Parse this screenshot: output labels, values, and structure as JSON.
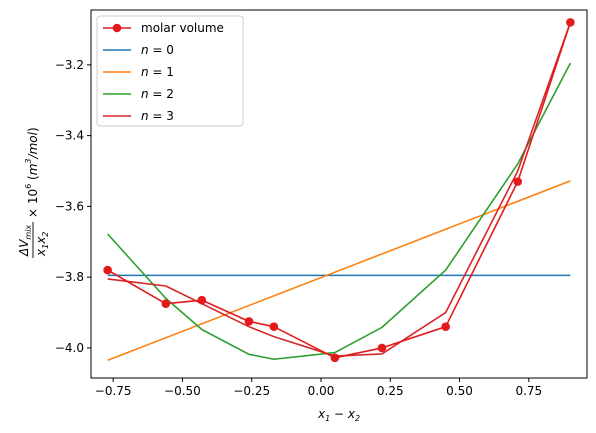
{
  "chart_data": {
    "type": "line",
    "xlabel": "x1 − x2",
    "ylabel": "ΔVmix / x1x2 × 10^6 (m^3/mol)",
    "xlim": [
      -0.83,
      0.96
    ],
    "ylim": [
      -4.085,
      -3.045
    ],
    "xticks": [
      -0.75,
      -0.5,
      -0.25,
      0.0,
      0.25,
      0.5,
      0.75
    ],
    "xtick_labels": [
      "−0.75",
      "−0.50",
      "−0.25",
      "0.00",
      "0.25",
      "0.50",
      "0.75"
    ],
    "yticks": [
      -4.0,
      -3.8,
      -3.6,
      -3.4,
      -3.2
    ],
    "ytick_labels": [
      "−4.0",
      "−3.8",
      "−3.6",
      "−3.4",
      "−3.2"
    ],
    "grid": false,
    "legend_position": "top-left",
    "series": [
      {
        "name": "molar volume",
        "color": "#e31a1c",
        "marker": "circle",
        "x": [
          -0.77,
          -0.56,
          -0.43,
          -0.26,
          -0.17,
          0.05,
          0.22,
          0.45,
          0.71,
          0.9
        ],
        "y": [
          -3.78,
          -3.875,
          -3.865,
          -3.925,
          -3.94,
          -4.028,
          -4.0,
          -3.94,
          -3.53,
          -3.08
        ]
      },
      {
        "name": "n = 0",
        "color": "#1f77b4",
        "marker": "none",
        "x": [
          -0.77,
          0.9
        ],
        "y": [
          -3.795,
          -3.795
        ]
      },
      {
        "name": "n = 1",
        "color": "#ff7f0e",
        "marker": "none",
        "x": [
          -0.77,
          0.9
        ],
        "y": [
          -4.035,
          -3.528
        ]
      },
      {
        "name": "n = 2",
        "color": "#2ca02c",
        "marker": "none",
        "x": [
          -0.77,
          -0.56,
          -0.43,
          -0.26,
          -0.17,
          0.05,
          0.22,
          0.45,
          0.71,
          0.9
        ],
        "y": [
          -3.678,
          -3.86,
          -3.948,
          -4.018,
          -4.032,
          -4.013,
          -3.942,
          -3.78,
          -3.48,
          -3.195
        ]
      },
      {
        "name": "n = 3",
        "color": "#d62728",
        "marker": "none",
        "x": [
          -0.77,
          -0.56,
          -0.43,
          -0.26,
          -0.17,
          0.05,
          0.22,
          0.45,
          0.71,
          0.9
        ],
        "y": [
          -3.805,
          -3.825,
          -3.875,
          -3.94,
          -3.968,
          -4.023,
          -4.017,
          -3.9,
          -3.5,
          -3.08
        ]
      }
    ]
  }
}
